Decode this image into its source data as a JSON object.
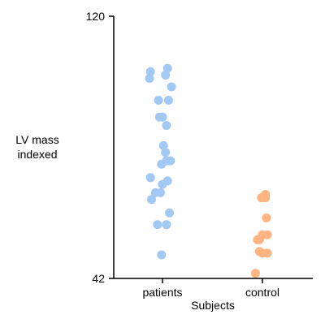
{
  "chart_data": {
    "type": "scatter",
    "style": "strip",
    "xlabel": "Subjects",
    "ylabel_lines": [
      "LV mass",
      "indexed"
    ],
    "ylim": [
      42,
      120
    ],
    "yticks": [
      "42",
      "120"
    ],
    "categories": [
      "patients",
      "control"
    ],
    "series": [
      {
        "name": "patients",
        "color": "#a1c9f4",
        "points": [
          {
            "offset": -0.12,
            "y": 103.5
          },
          {
            "offset": 0.05,
            "y": 104.5
          },
          {
            "offset": 0.03,
            "y": 102.5
          },
          {
            "offset": -0.13,
            "y": 101.5
          },
          {
            "offset": 0.09,
            "y": 99.0
          },
          {
            "offset": -0.04,
            "y": 95.0
          },
          {
            "offset": 0.06,
            "y": 95.0
          },
          {
            "offset": -0.03,
            "y": 90.0
          },
          {
            "offset": 0.0,
            "y": 90.0
          },
          {
            "offset": 0.04,
            "y": 87.5
          },
          {
            "offset": 0.01,
            "y": 81.5
          },
          {
            "offset": 0.03,
            "y": 79.5
          },
          {
            "offset": 0.08,
            "y": 77.0
          },
          {
            "offset": 0.04,
            "y": 77.0
          },
          {
            "offset": -0.01,
            "y": 76.0
          },
          {
            "offset": -0.12,
            "y": 72.0
          },
          {
            "offset": 0.05,
            "y": 71.0
          },
          {
            "offset": 0.0,
            "y": 70.0
          },
          {
            "offset": -0.07,
            "y": 67.5
          },
          {
            "offset": -0.02,
            "y": 67.5
          },
          {
            "offset": -0.11,
            "y": 65.5
          },
          {
            "offset": 0.07,
            "y": 61.5
          },
          {
            "offset": -0.05,
            "y": 58.0
          },
          {
            "offset": 0.04,
            "y": 58.0
          },
          {
            "offset": -0.01,
            "y": 49.0
          }
        ]
      },
      {
        "name": "control",
        "color": "#ffb482",
        "points": [
          {
            "offset": 0.03,
            "y": 67.0
          },
          {
            "offset": -0.01,
            "y": 66.0
          },
          {
            "offset": 0.03,
            "y": 66.0
          },
          {
            "offset": 0.04,
            "y": 60.0
          },
          {
            "offset": 0.0,
            "y": 55.0
          },
          {
            "offset": 0.05,
            "y": 55.0
          },
          {
            "offset": -0.03,
            "y": 53.5
          },
          {
            "offset": -0.05,
            "y": 53.5
          },
          {
            "offset": -0.03,
            "y": 50.0
          },
          {
            "offset": 0.0,
            "y": 49.5
          },
          {
            "offset": 0.05,
            "y": 49.5
          },
          {
            "offset": -0.07,
            "y": 43.5
          }
        ]
      }
    ]
  }
}
